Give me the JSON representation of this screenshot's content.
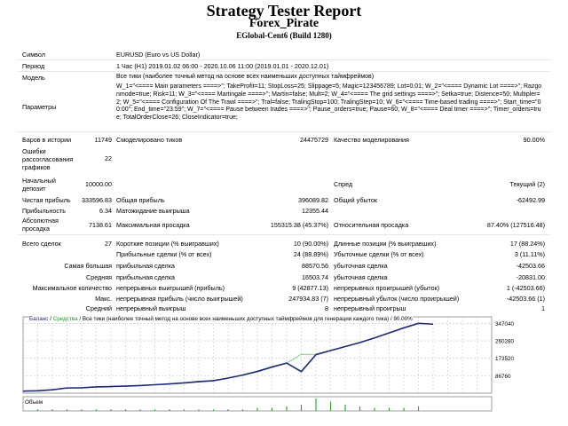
{
  "header": {
    "title": "Strategy Tester Report",
    "subtitle": "Forex_Pirate",
    "company": "EGlobal-Cent6 (Build 1280)"
  },
  "info": {
    "symbol_label": "Символ",
    "symbol_value": "EURUSD (Euro vs US Dollar)",
    "period_label": "Период",
    "period_value": "1 Час (H1) 2019.01.02 06:00 - 2020.10.06 11:00 (2019.01.01 - 2020.12.01)",
    "model_label": "Модель",
    "model_value": "Все тики (наиболее точный метод на основе всех наименьших доступных таймфреймов)",
    "params_label": "Параметры",
    "params_value": "W_1=\"<==== Main parameters ====>\"; TakeProfit=11; StopLoss=25; Slippage=5; Magic=123456789; Lot=0.01; W_2=\"<==== Dynamic Lot ====>\"; Razgonmode=true; Risk=11; W_3=\"<==== Martingale ====>\"; Martin=false; Mult=2; W_4=\"<==== The grid settings ====>\"; Setka=true; Distence=50; Multipler=2; W_5=\"<==== Configuration Of The Trawl ====>\"; Tral=false; TralingStop=100; TralingStep=10; W_6=\"<==== Time-based trading ====>\"; Start_time=\"00:00\"; End_time=\"23:59\"; W_7=\"<==== Pause between trades ====>\"; Pause_orders=true; Pause=60; W_8=\"<==== Deal timer ====>\"; Timer_orders=true; TotalOrderClose=26; CloseIndicator=true;"
  },
  "stats": {
    "bars_label": "Баров в истории",
    "bars_value": "11749",
    "ticks_label": "Смоделировано тиков",
    "ticks_value": "24475729",
    "quality_label": "Качество моделирования",
    "quality_value": "90.00%",
    "errors_label": "Ошибки рассогласования графиков",
    "errors_value": "22",
    "deposit_label": "Начальный депозит",
    "deposit_value": "10000.00",
    "spread_label": "Спред",
    "spread_value": "Текущий (2)",
    "net_label": "Чистая прибыль",
    "net_value": "333596.83",
    "gross_profit_label": "Общая прибыль",
    "gross_profit_value": "396089.82",
    "gross_loss_label": "Общий убыток",
    "gross_loss_value": "-62492.99",
    "pf_label": "Прибыльность",
    "pf_value": "6.34",
    "expected_label": "Матожидание выигрыша",
    "expected_value": "12355.44",
    "abs_dd_label": "Абсолютная просадка",
    "abs_dd_value": "7138.61",
    "max_dd_label": "Максимальная просадка",
    "max_dd_value": "155315.38 (45.37%)",
    "rel_dd_label": "Относительная просадка",
    "rel_dd_value": "87.40% (127516.48)",
    "total_label": "Всего сделок",
    "total_value": "27",
    "short_label": "Короткие позиции (% выигравших)",
    "short_value": "10 (90.00%)",
    "long_label": "Длинные позиции (% выигравших)",
    "long_value": "17 (88.24%)",
    "profit_trades_label": "Прибыльные сделки (% от всех)",
    "profit_trades_value": "24 (88.89%)",
    "loss_trades_label": "Убыточные сделки (% от всех)",
    "loss_trades_value": "3 (11.11%)",
    "largest_label": "Самая большая",
    "largest_profit_label": "прибыльная сделка",
    "largest_profit_value": "88570.56",
    "largest_loss_label": "убыточная сделка",
    "largest_loss_value": "-42503.66",
    "avg_label": "Средняя",
    "avg_profit_label": "прибыльная сделка",
    "avg_profit_value": "16503.74",
    "avg_loss_label": "убыточная сделка",
    "avg_loss_value": "-20831.00",
    "maxcount_label": "Максимальное количество",
    "maxcount_wins_label": "непрерывных выигрышей (прибыль)",
    "maxcount_wins_value": "9 (42877.13)",
    "maxcount_losses_label": "непрерывных проигрышей (убыток)",
    "maxcount_losses_value": "1 (-42503.66)",
    "max_label": "Макс.",
    "max_profit_label": "непрерывная прибыль (число выигрышей)",
    "max_profit_value": "247934.83 (7)",
    "max_loss_label": "непрерывный убыток (число проигрышей)",
    "max_loss_value": "-42503.66 (1)",
    "avgcons_label": "Средний",
    "avgcons_wins_label": "непрерывный выигрыш",
    "avgcons_wins_value": "8",
    "avgcons_losses_label": "непрерывный проигрыш",
    "avgcons_losses_value": "1"
  },
  "legend": {
    "balance": "Баланс",
    "sep1": " / ",
    "equity": "Средства",
    "rest": " / Все тики (наиболее точный метод на основе всех наименьших доступных таймфреймов для генерации каждого тика) / 90.00%"
  },
  "colors": {
    "balance": "#1f2a7a",
    "equity": "#7ad07a",
    "volume": "#2fa82f",
    "grid": "#c8c8c8"
  },
  "chart_data": {
    "type": "line",
    "ylabel_volume": "Объем",
    "x_ticks": [
      "0",
      "1",
      "2",
      "3",
      "4",
      "5",
      "6",
      "7",
      "8",
      "9",
      "10",
      "11",
      "12",
      "13",
      "14",
      "15",
      "16",
      "17",
      "18",
      "19",
      "20",
      "21",
      "22",
      "23",
      "24",
      "25",
      "26",
      "27",
      "28",
      "29",
      "30",
      "31",
      "32"
    ],
    "y_ticks": [
      "347040",
      "260280",
      "173520",
      "86760"
    ],
    "xlim": [
      0,
      32
    ],
    "ylim": [
      0,
      380000
    ],
    "series": [
      {
        "name": "Баланс",
        "x": [
          0,
          1,
          2,
          3,
          4,
          5,
          6,
          7,
          8,
          9,
          10,
          11,
          12,
          13,
          14,
          15,
          16,
          17,
          18,
          19,
          20,
          21,
          22,
          23,
          24,
          25,
          26,
          27,
          28
        ],
        "values": [
          10000,
          12000,
          17000,
          26000,
          27000,
          31000,
          33000,
          35000,
          38000,
          42000,
          46000,
          51000,
          57000,
          62000,
          75000,
          90000,
          108000,
          130000,
          150000,
          107500,
          192000,
          212000,
          232000,
          252000,
          275000,
          300000,
          325000,
          347600,
          343600
        ]
      },
      {
        "name": "Средства",
        "x": [
          0,
          1,
          2,
          3,
          4,
          5,
          6,
          7,
          8,
          9,
          10,
          11,
          12,
          13,
          14,
          15,
          16,
          17,
          18,
          19,
          20,
          21,
          22,
          23,
          24,
          25,
          26,
          27,
          28
        ],
        "values": [
          10000,
          12000,
          17000,
          26000,
          27000,
          31000,
          33000,
          35000,
          38000,
          42000,
          46000,
          51000,
          60000,
          62000,
          75000,
          92000,
          110000,
          132000,
          150000,
          193000,
          194000,
          213000,
          233000,
          253000,
          276000,
          301000,
          326000,
          347600,
          343600
        ]
      }
    ],
    "volume": {
      "x": [
        1,
        2,
        3,
        4,
        5,
        6,
        7,
        8,
        9,
        10,
        11,
        12,
        13,
        14,
        15,
        16,
        17,
        18,
        19,
        20,
        21,
        22,
        23,
        24,
        25,
        26,
        27
      ],
      "values": [
        1,
        1,
        1,
        1,
        1,
        1,
        1,
        1,
        1,
        1,
        1,
        1,
        1,
        1,
        1,
        2,
        2,
        3,
        4,
        8,
        6,
        4,
        3,
        2,
        2,
        2,
        3
      ]
    }
  }
}
